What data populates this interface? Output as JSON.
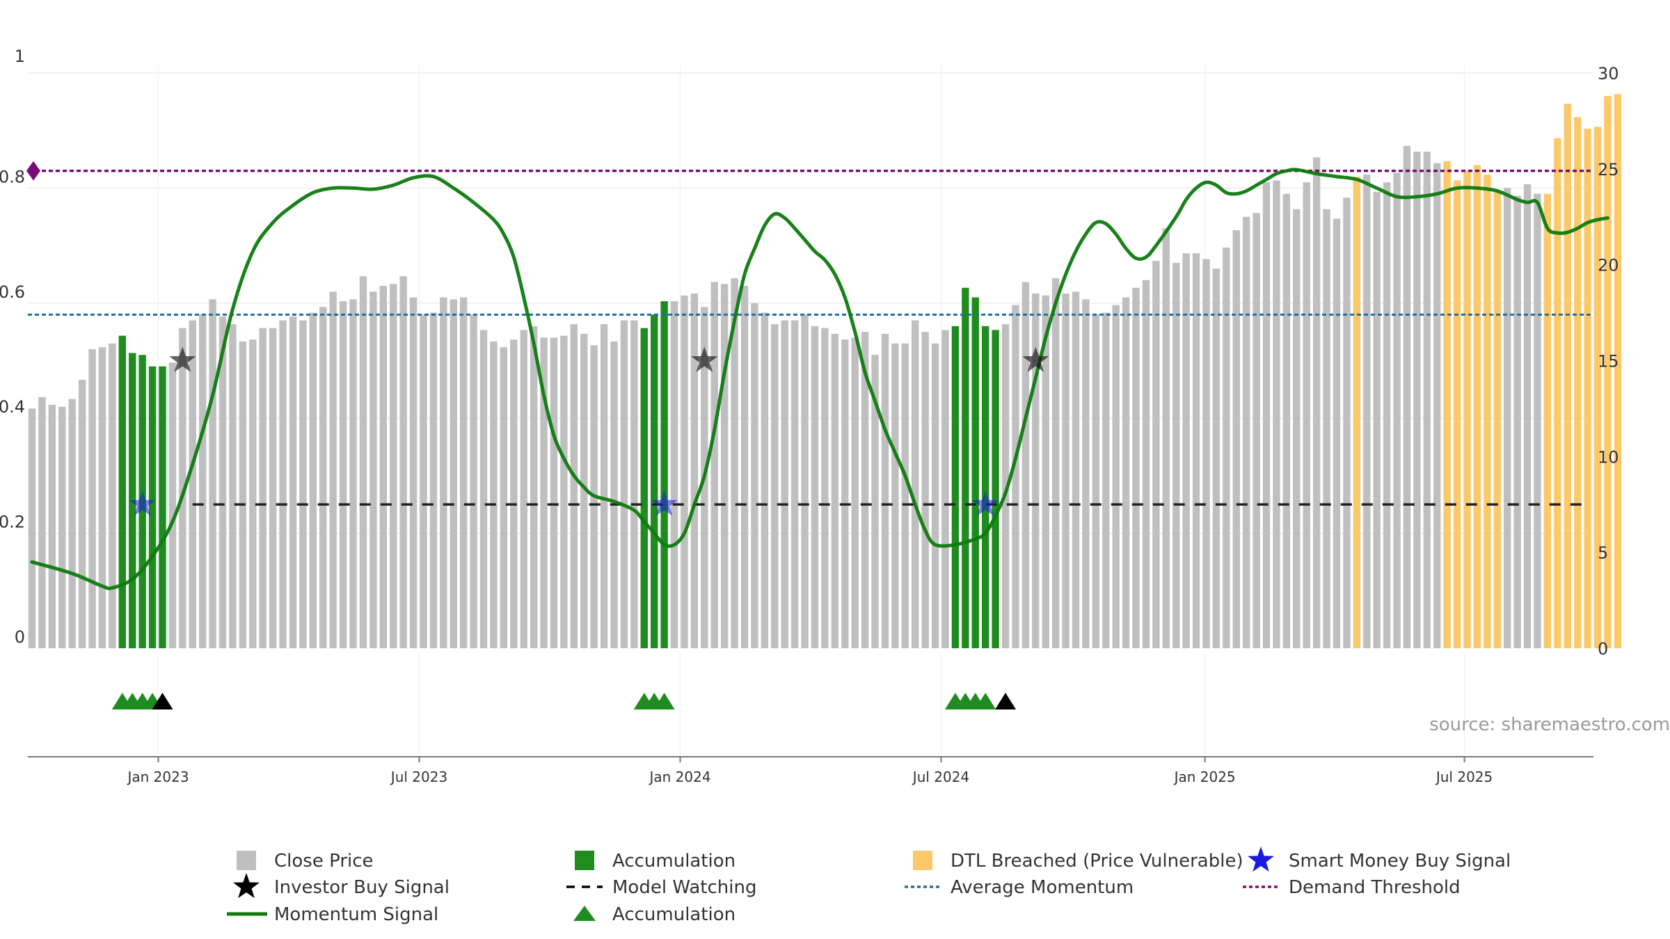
{
  "chart_data": {
    "type": "bar",
    "source": "source: sharemaestro.com",
    "left_axis": {
      "range": [
        0,
        1
      ],
      "ticks": [
        "0",
        "0.2",
        "0.4",
        "0.6",
        "0.8",
        "1"
      ],
      "tick_values": [
        0,
        0.2,
        0.4,
        0.6,
        0.8,
        1
      ]
    },
    "right_axis": {
      "range": [
        0,
        30
      ],
      "ticks": [
        "0",
        "5",
        "10",
        "15",
        "20",
        "25",
        "30"
      ],
      "tick_values": [
        0,
        5,
        10,
        15,
        20,
        25,
        30
      ]
    },
    "x_axis": {
      "start": "2022-10-03",
      "end": "2025-09-29",
      "ticks": [
        {
          "label": "Jan 2023",
          "date": "2023-01-02"
        },
        {
          "label": "Jul 2023",
          "date": "2023-07-03"
        },
        {
          "label": "Jan 2024",
          "date": "2024-01-01"
        },
        {
          "label": "Jul 2024",
          "date": "2024-07-01"
        },
        {
          "label": "Jan 2025",
          "date": "2025-01-01"
        },
        {
          "label": "Jul 2025",
          "date": "2025-07-01"
        }
      ]
    },
    "close_price": {
      "start_date": "2022-10-03",
      "interval_days": 7,
      "values": [
        12.5,
        13.1,
        12.7,
        12.6,
        13.0,
        14.0,
        15.6,
        15.7,
        15.9,
        16.3,
        15.4,
        15.3,
        14.7,
        14.7,
        14.9,
        16.7,
        17.1,
        17.4,
        18.2,
        17.3,
        16.9,
        16.0,
        16.1,
        16.7,
        16.7,
        17.1,
        17.3,
        17.1,
        17.5,
        17.8,
        18.6,
        18.1,
        18.2,
        19.4,
        18.6,
        18.9,
        19.0,
        19.4,
        18.3,
        17.4,
        17.5,
        18.3,
        18.2,
        18.3,
        17.4,
        16.6,
        16.0,
        15.7,
        16.1,
        16.6,
        16.8,
        16.2,
        16.2,
        16.3,
        16.9,
        16.4,
        15.8,
        16.9,
        16.0,
        17.1,
        17.1,
        16.7,
        17.4,
        18.1,
        18.1,
        18.4,
        18.5,
        17.8,
        19.1,
        19.0,
        19.3,
        18.9,
        18.0,
        17.5,
        16.9,
        17.1,
        17.1,
        17.4,
        16.8,
        16.7,
        16.4,
        16.1,
        16.2,
        16.5,
        15.3,
        16.4,
        15.9,
        15.9,
        17.1,
        16.5,
        15.9,
        16.6,
        16.8,
        18.8,
        18.3,
        16.8,
        16.6,
        16.9,
        17.9,
        19.1,
        18.5,
        18.4,
        19.3,
        18.5,
        18.6,
        18.2,
        17.4,
        17.5,
        17.9,
        18.3,
        18.8,
        19.2,
        20.2,
        21.9,
        20.1,
        20.6,
        20.6,
        20.3,
        19.8,
        20.9,
        21.8,
        22.5,
        22.7,
        24.3,
        24.4,
        23.7,
        22.9,
        24.3,
        25.6,
        22.9,
        22.4,
        23.5,
        24.6,
        24.7,
        23.8,
        24.3,
        24.8,
        26.2,
        25.9,
        25.9,
        25.3,
        25.4,
        24.4,
        24.9,
        25.2,
        24.7,
        23.8,
        24.0,
        23.6,
        24.2,
        23.7,
        23.7,
        26.6,
        28.4,
        27.7,
        27.1,
        27.2,
        28.8,
        28.9
      ],
      "accumulation_ranges": [
        [
          9,
          13
        ],
        [
          61,
          63
        ],
        [
          92,
          96
        ]
      ],
      "dtl_breached_ranges": [
        [
          132,
          132
        ],
        [
          141,
          146
        ],
        [
          151,
          158
        ]
      ]
    },
    "momentum_signal": {
      "points": [
        [
          0,
          0.15
        ],
        [
          4,
          0.13
        ],
        [
          7,
          0.108
        ],
        [
          8,
          0.105
        ],
        [
          10,
          0.12
        ],
        [
          12,
          0.16
        ],
        [
          14,
          0.22
        ],
        [
          16,
          0.32
        ],
        [
          18,
          0.44
        ],
        [
          20,
          0.59
        ],
        [
          22,
          0.69
        ],
        [
          24,
          0.74
        ],
        [
          26,
          0.77
        ],
        [
          28,
          0.792
        ],
        [
          30,
          0.8
        ],
        [
          32,
          0.8
        ],
        [
          34,
          0.798
        ],
        [
          36,
          0.805
        ],
        [
          38,
          0.818
        ],
        [
          40,
          0.82
        ],
        [
          42,
          0.8
        ],
        [
          44,
          0.775
        ],
        [
          46,
          0.745
        ],
        [
          47,
          0.72
        ],
        [
          48,
          0.68
        ],
        [
          49,
          0.61
        ],
        [
          50,
          0.53
        ],
        [
          51,
          0.44
        ],
        [
          52,
          0.37
        ],
        [
          53,
          0.33
        ],
        [
          54,
          0.3
        ],
        [
          55,
          0.28
        ],
        [
          56,
          0.265
        ],
        [
          58,
          0.255
        ],
        [
          60,
          0.24
        ],
        [
          61,
          0.22
        ],
        [
          62,
          0.2
        ],
        [
          63,
          0.18
        ],
        [
          64,
          0.18
        ],
        [
          65,
          0.2
        ],
        [
          66,
          0.25
        ],
        [
          67,
          0.3
        ],
        [
          68,
          0.38
        ],
        [
          69,
          0.48
        ],
        [
          70,
          0.57
        ],
        [
          71,
          0.65
        ],
        [
          72,
          0.695
        ],
        [
          73,
          0.735
        ],
        [
          74,
          0.755
        ],
        [
          75,
          0.748
        ],
        [
          76,
          0.73
        ],
        [
          77,
          0.71
        ],
        [
          78,
          0.69
        ],
        [
          79,
          0.675
        ],
        [
          80,
          0.65
        ],
        [
          81,
          0.61
        ],
        [
          82,
          0.55
        ],
        [
          83,
          0.48
        ],
        [
          84,
          0.43
        ],
        [
          85,
          0.38
        ],
        [
          86,
          0.34
        ],
        [
          87,
          0.3
        ],
        [
          88,
          0.25
        ],
        [
          89,
          0.205
        ],
        [
          90,
          0.18
        ],
        [
          92,
          0.18
        ],
        [
          94,
          0.19
        ],
        [
          95,
          0.2
        ],
        [
          96,
          0.23
        ],
        [
          97,
          0.27
        ],
        [
          98,
          0.33
        ],
        [
          99,
          0.4
        ],
        [
          100,
          0.47
        ],
        [
          101,
          0.54
        ],
        [
          102,
          0.6
        ],
        [
          103,
          0.65
        ],
        [
          104,
          0.69
        ],
        [
          105,
          0.72
        ],
        [
          106,
          0.74
        ],
        [
          107,
          0.738
        ],
        [
          108,
          0.72
        ],
        [
          109,
          0.695
        ],
        [
          110,
          0.678
        ],
        [
          111,
          0.68
        ],
        [
          112,
          0.7
        ],
        [
          114,
          0.75
        ],
        [
          115,
          0.78
        ],
        [
          116,
          0.8
        ],
        [
          117,
          0.81
        ],
        [
          118,
          0.805
        ],
        [
          119,
          0.792
        ],
        [
          120,
          0.79
        ],
        [
          121,
          0.795
        ],
        [
          122,
          0.805
        ],
        [
          123,
          0.815
        ],
        [
          124,
          0.825
        ],
        [
          125,
          0.83
        ],
        [
          126,
          0.832
        ],
        [
          128,
          0.825
        ],
        [
          130,
          0.82
        ],
        [
          132,
          0.815
        ],
        [
          134,
          0.8
        ],
        [
          136,
          0.785
        ],
        [
          138,
          0.785
        ],
        [
          140,
          0.79
        ],
        [
          142,
          0.8
        ],
        [
          144,
          0.8
        ],
        [
          146,
          0.795
        ],
        [
          148,
          0.78
        ],
        [
          149,
          0.775
        ],
        [
          150,
          0.775
        ],
        [
          151,
          0.73
        ],
        [
          152,
          0.722
        ],
        [
          153,
          0.723
        ],
        [
          154,
          0.73
        ],
        [
          155,
          0.74
        ],
        [
          156,
          0.745
        ],
        [
          157,
          0.748
        ]
      ],
      "color": "#0d7a0d"
    },
    "average_momentum": 0.58,
    "demand_threshold": 0.83,
    "model_watching_level": 0.25,
    "model_watching_start_index": 16,
    "smart_money_buy_signals": [
      [
        11,
        0.25
      ],
      [
        63,
        0.25
      ],
      [
        95,
        0.25
      ]
    ],
    "investor_buy_signals": [
      [
        15,
        0.5
      ],
      [
        67,
        0.5
      ],
      [
        100,
        0.5
      ]
    ],
    "accumulation_triangles": [
      9,
      10,
      11,
      12,
      61,
      62,
      63,
      92,
      93,
      94,
      95
    ],
    "investor_triangles": [
      13,
      97
    ],
    "colors": {
      "close_price": "#bfbfbf",
      "accumulation": "#1f8c1f",
      "dtl_breached": "#fcc96a",
      "average_momentum": "#1f6fa1",
      "demand_threshold": "#7a0a7a",
      "model_watching": "#222222",
      "smart_money": "#1a1ae0",
      "investor": "#111111"
    },
    "legend": [
      {
        "key": "close",
        "label": "Close Price"
      },
      {
        "key": "accumulation_bar",
        "label": "Accumulation"
      },
      {
        "key": "dtl",
        "label": "DTL Breached (Price Vulnerable)"
      },
      {
        "key": "smart_money",
        "label": "Smart Money Buy Signal"
      },
      {
        "key": "investor",
        "label": "Investor Buy Signal"
      },
      {
        "key": "watching",
        "label": "Model Watching"
      },
      {
        "key": "avg_momentum",
        "label": "Average Momentum"
      },
      {
        "key": "demand",
        "label": "Demand Threshold"
      },
      {
        "key": "momentum",
        "label": "Momentum Signal"
      },
      {
        "key": "accumulation_triangle",
        "label": "Accumulation"
      }
    ]
  }
}
